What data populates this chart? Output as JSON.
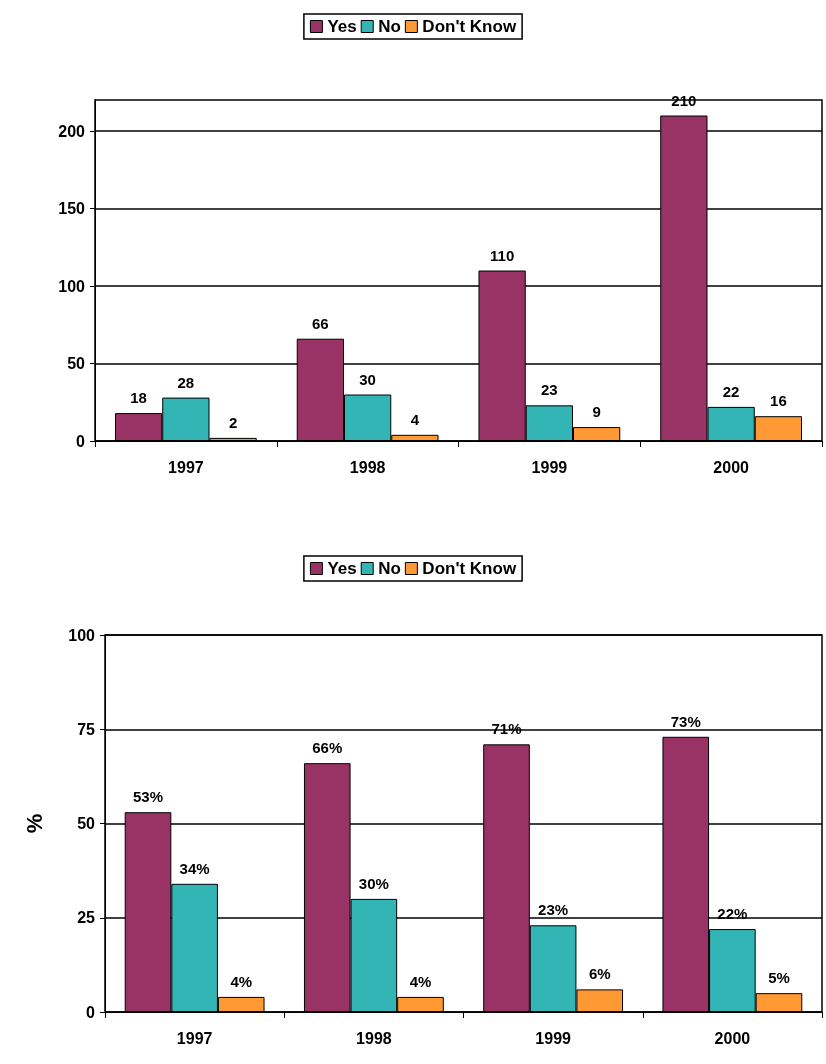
{
  "chart_data": [
    {
      "type": "bar",
      "categories": [
        "1997",
        "1998",
        "1999",
        "2000"
      ],
      "ylim": [
        0,
        220
      ],
      "yticks": [
        0,
        50,
        100,
        150,
        200
      ],
      "grid": "y",
      "legend": "top",
      "data_labels": true,
      "series": [
        {
          "name": "Yes",
          "color": "#993366",
          "values": [
            18,
            66,
            110,
            210
          ]
        },
        {
          "name": "No",
          "color": "#33b5b5",
          "values": [
            28,
            30,
            23,
            22
          ]
        },
        {
          "name": "Don't Know",
          "color": "#ff9933",
          "values": [
            2,
            4,
            9,
            16
          ]
        }
      ]
    },
    {
      "type": "bar",
      "categories": [
        "1997",
        "1998",
        "1999",
        "2000"
      ],
      "ylabel": "%",
      "ylim": [
        0,
        100
      ],
      "yticks": [
        0,
        25,
        50,
        75,
        100
      ],
      "grid": "y",
      "legend": "top",
      "series": [
        {
          "name": "Yes",
          "color": "#993366",
          "values": [
            53,
            66,
            71,
            73
          ],
          "value_labels": [
            "53%",
            "66%",
            "71%",
            "73%"
          ]
        },
        {
          "name": "No",
          "color": "#33b5b5",
          "values": [
            34,
            30,
            23,
            22
          ],
          "value_labels": [
            "34%",
            "30%",
            "23%",
            "22%"
          ]
        },
        {
          "name": "Don't Know",
          "color": "#ff9933",
          "values": [
            4,
            4,
            6,
            5
          ],
          "value_labels": [
            "4%",
            "4%",
            "6%",
            "5%"
          ]
        }
      ]
    }
  ]
}
